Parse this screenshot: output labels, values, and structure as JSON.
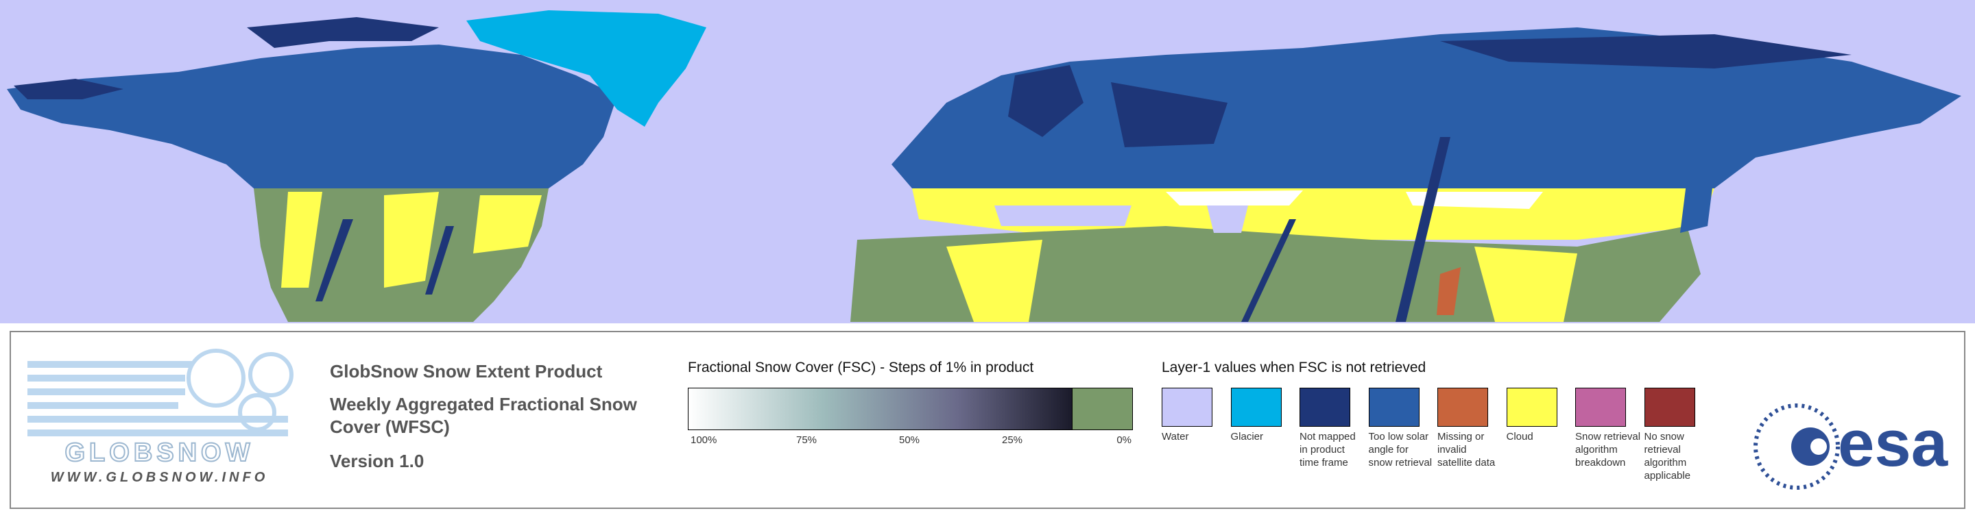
{
  "logo": {
    "name": "GLOBSNOW",
    "url": "WWW.GLOBSNOW.INFO"
  },
  "product": {
    "title": "GlobSnow Snow Extent Product",
    "subtitle": "Weekly Aggregated Fractional Snow Cover (WFSC)",
    "version": "Version 1.0"
  },
  "fsc_legend": {
    "title": "Fractional Snow Cover (FSC) - Steps of 1% in product",
    "labels": [
      "100%",
      "75%",
      "50%",
      "25%",
      "0%"
    ]
  },
  "layer1_legend": {
    "title": "Layer-1 values when FSC is not retrieved",
    "items": [
      {
        "label": "Water",
        "color": "#c8c8fa"
      },
      {
        "label": "Glacier",
        "color": "#00b0e6"
      },
      {
        "label": "Not mapped in product time frame",
        "color": "#1e3678"
      },
      {
        "label": "Too low solar angle for snow retrieval",
        "color": "#2a5ea8"
      },
      {
        "label": "Missing or invalid satellite data",
        "color": "#c8643c"
      },
      {
        "label": "Cloud",
        "color": "#ffff50"
      },
      {
        "label": "Snow retrieval algorithm breakdown",
        "color": "#c064a0"
      },
      {
        "label": "No snow retrieval algorithm applicable",
        "color": "#963232"
      }
    ]
  },
  "agency": "esa"
}
